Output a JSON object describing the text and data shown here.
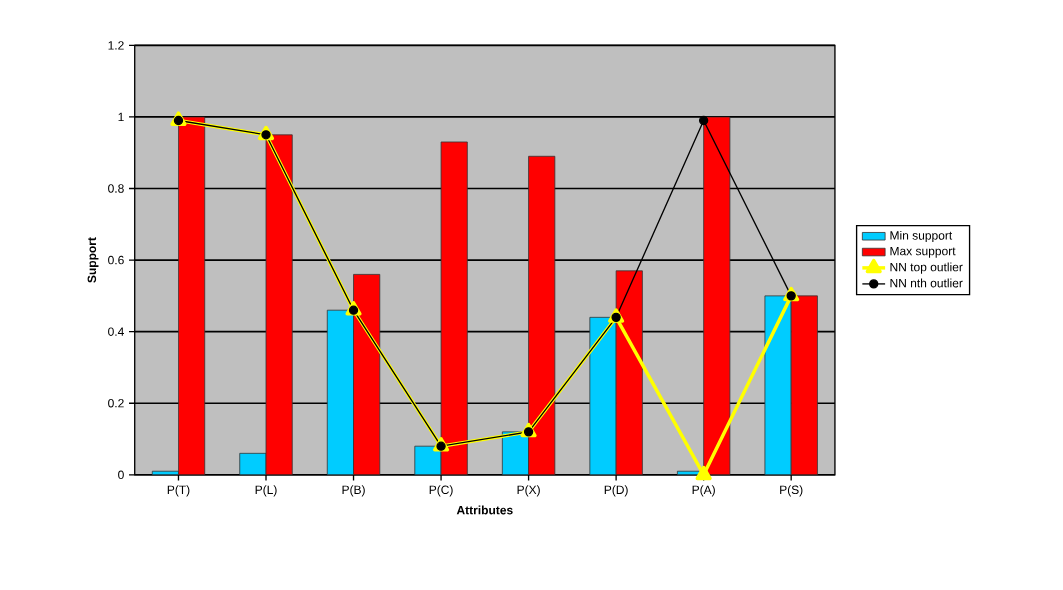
{
  "chart_data": {
    "type": "bar",
    "xlabel": "Attributes",
    "ylabel": "Support",
    "categories": [
      "P(T)",
      "P(L)",
      "P(B)",
      "P(C)",
      "P(X)",
      "P(D)",
      "P(A)",
      "P(S)"
    ],
    "series": [
      {
        "name": "Min support",
        "color": "#00ccff",
        "values": [
          0.01,
          0.06,
          0.46,
          0.08,
          0.12,
          0.44,
          0.01,
          0.5
        ]
      },
      {
        "name": "Max support",
        "color": "#ff0000",
        "values": [
          1.0,
          0.95,
          0.56,
          0.93,
          0.89,
          0.57,
          1.0,
          0.5
        ]
      },
      {
        "name": "NN top outlier",
        "type": "line",
        "color": "#ffff00",
        "marker": "triangle",
        "values": [
          0.99,
          0.95,
          0.46,
          0.08,
          0.12,
          0.44,
          0,
          0.5
        ]
      },
      {
        "name": "NN nth outlier",
        "type": "line",
        "color": "#000000",
        "marker": "circle",
        "values": [
          0.99,
          0.95,
          0.46,
          0.08,
          0.12,
          0.44,
          0.99,
          0.5
        ]
      }
    ],
    "ylim": [
      0,
      1.2
    ],
    "yticks": [
      0,
      0.2,
      0.4,
      0.6,
      0.8,
      1,
      1.2
    ],
    "grid": "y",
    "legend": "right"
  }
}
